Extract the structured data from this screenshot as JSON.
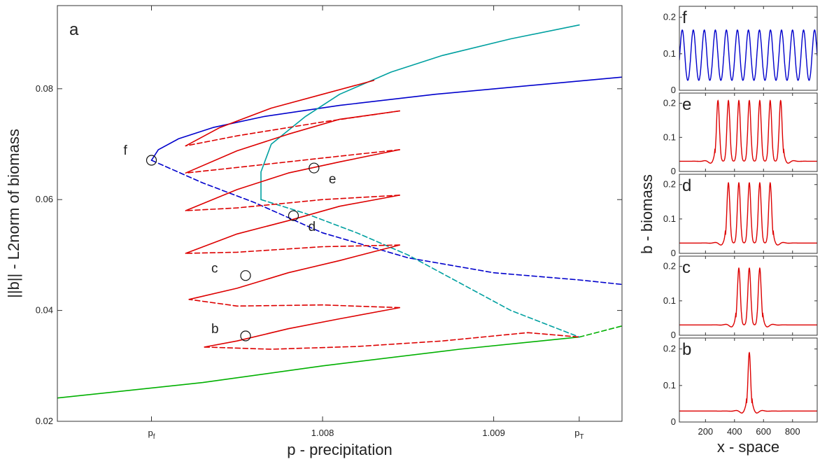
{
  "chart_data": [
    {
      "type": "line",
      "panel_label": "a",
      "xlabel": "p - precipitation",
      "ylabel": "||b|| - L2norm of biomass",
      "xlim": [
        1.00645,
        1.00975
      ],
      "ylim": [
        0.02,
        0.095
      ],
      "x_ticks": [
        {
          "value": 1.007,
          "label": "p",
          "sub": "f"
        },
        {
          "value": 1.008,
          "label": "1.008",
          "sub": ""
        },
        {
          "value": 1.009,
          "label": "1.009",
          "sub": ""
        },
        {
          "value": 1.0095,
          "label": "p",
          "sub": "T"
        }
      ],
      "y_ticks": [
        {
          "value": 0.02,
          "label": "0.02"
        },
        {
          "value": 0.04,
          "label": "0.04"
        },
        {
          "value": 0.06,
          "label": "0.06"
        },
        {
          "value": 0.08,
          "label": "0.08"
        }
      ],
      "series": [
        {
          "color": "#00b000",
          "style": "solid",
          "points": [
            [
              1.00645,
              0.0242
            ],
            [
              1.0073,
              0.027
            ],
            [
              1.008,
              0.03
            ],
            [
              1.0088,
              0.033
            ],
            [
              1.0095,
              0.0352
            ]
          ]
        },
        {
          "color": "#00b000",
          "style": "dashed",
          "points": [
            [
              1.0095,
              0.0352
            ],
            [
              1.00975,
              0.0372
            ]
          ]
        },
        {
          "color": "#0000cc",
          "style": "solid",
          "points": [
            [
              1.007,
              0.0671
            ],
            [
              1.00704,
              0.069
            ],
            [
              1.00716,
              0.071
            ],
            [
              1.00736,
              0.073
            ],
            [
              1.00766,
              0.075
            ],
            [
              1.0081,
              0.077
            ],
            [
              1.00866,
              0.079
            ],
            [
              1.00936,
              0.081
            ],
            [
              1.00975,
              0.0821
            ]
          ]
        },
        {
          "color": "#0000cc",
          "style": "dashed",
          "points": [
            [
              1.007,
              0.0671
            ],
            [
              1.0073,
              0.063
            ],
            [
              1.0076,
              0.0595
            ],
            [
              1.008,
              0.054
            ],
            [
              1.0085,
              0.0495
            ],
            [
              1.009,
              0.0468
            ],
            [
              1.0095,
              0.0455
            ],
            [
              1.00975,
              0.0447
            ]
          ]
        },
        {
          "color": "#00a0a0",
          "style": "solid",
          "points": [
            [
              1.00764,
              0.06
            ],
            [
              1.00764,
              0.065
            ],
            [
              1.0077,
              0.07
            ],
            [
              1.0079,
              0.075
            ],
            [
              1.0081,
              0.079
            ],
            [
              1.0084,
              0.083
            ],
            [
              1.0087,
              0.086
            ],
            [
              1.0091,
              0.089
            ],
            [
              1.0095,
              0.0915
            ]
          ]
        },
        {
          "color": "#00a0a0",
          "style": "dashed",
          "points": [
            [
              1.00764,
              0.06
            ],
            [
              1.0079,
              0.0575
            ],
            [
              1.0082,
              0.054
            ],
            [
              1.0085,
              0.05
            ],
            [
              1.0088,
              0.045
            ],
            [
              1.0091,
              0.04
            ],
            [
              1.0095,
              0.0352
            ]
          ]
        },
        {
          "color": "#dd0000",
          "style": "solid",
          "points": [
            [
              1.00731,
              0.0334
            ],
            [
              1.0075,
              0.0345
            ],
            [
              1.0078,
              0.0367
            ],
            [
              1.0081,
              0.0385
            ],
            [
              1.00845,
              0.0405
            ]
          ]
        },
        {
          "color": "#dd0000",
          "style": "dashed",
          "points": [
            [
              1.00731,
              0.0334
            ],
            [
              1.0077,
              0.033
            ],
            [
              1.0082,
              0.0335
            ],
            [
              1.0087,
              0.0345
            ],
            [
              1.0092,
              0.036
            ],
            [
              1.0095,
              0.0352
            ]
          ]
        },
        {
          "color": "#dd0000",
          "style": "dashed",
          "points": [
            [
              1.00845,
              0.0405
            ],
            [
              1.008,
              0.041
            ],
            [
              1.0075,
              0.0408
            ],
            [
              1.00722,
              0.042
            ]
          ]
        },
        {
          "color": "#dd0000",
          "style": "solid",
          "points": [
            [
              1.00722,
              0.042
            ],
            [
              1.0075,
              0.044
            ],
            [
              1.0078,
              0.0468
            ],
            [
              1.0081,
              0.049
            ],
            [
              1.00845,
              0.0518
            ]
          ]
        },
        {
          "color": "#dd0000",
          "style": "dashed",
          "points": [
            [
              1.00845,
              0.0518
            ],
            [
              1.008,
              0.0515
            ],
            [
              1.0075,
              0.0505
            ],
            [
              1.0072,
              0.0503
            ]
          ]
        },
        {
          "color": "#dd0000",
          "style": "solid",
          "points": [
            [
              1.0072,
              0.0503
            ],
            [
              1.0075,
              0.0538
            ],
            [
              1.0078,
              0.0562
            ],
            [
              1.0081,
              0.0588
            ],
            [
              1.00845,
              0.0608
            ]
          ]
        },
        {
          "color": "#dd0000",
          "style": "dashed",
          "points": [
            [
              1.00845,
              0.0608
            ],
            [
              1.008,
              0.06
            ],
            [
              1.0075,
              0.0585
            ],
            [
              1.0072,
              0.058
            ]
          ]
        },
        {
          "color": "#dd0000",
          "style": "solid",
          "points": [
            [
              1.0072,
              0.058
            ],
            [
              1.0075,
              0.0618
            ],
            [
              1.0078,
              0.0648
            ],
            [
              1.0081,
              0.0668
            ],
            [
              1.00845,
              0.069
            ]
          ]
        },
        {
          "color": "#dd0000",
          "style": "dashed",
          "points": [
            [
              1.00845,
              0.069
            ],
            [
              1.008,
              0.0675
            ],
            [
              1.0075,
              0.0658
            ],
            [
              1.0072,
              0.0648
            ]
          ]
        },
        {
          "color": "#dd0000",
          "style": "solid",
          "points": [
            [
              1.0072,
              0.0648
            ],
            [
              1.0075,
              0.0688
            ],
            [
              1.0078,
              0.0718
            ],
            [
              1.0081,
              0.0745
            ],
            [
              1.00845,
              0.076
            ]
          ]
        },
        {
          "color": "#dd0000",
          "style": "dashed",
          "points": [
            [
              1.00845,
              0.076
            ],
            [
              1.008,
              0.074
            ],
            [
              1.0075,
              0.0715
            ],
            [
              1.0072,
              0.0697
            ]
          ]
        },
        {
          "color": "#dd0000",
          "style": "solid",
          "points": [
            [
              1.0072,
              0.0697
            ],
            [
              1.0074,
              0.073
            ],
            [
              1.0077,
              0.0765
            ],
            [
              1.008,
              0.079
            ],
            [
              1.0083,
              0.0815
            ]
          ]
        }
      ],
      "markers": [
        {
          "label": "f",
          "x": 1.007,
          "y": 0.0671
        },
        {
          "label": "e",
          "x": 1.00795,
          "y": 0.0657
        },
        {
          "label": "d",
          "x": 1.00783,
          "y": 0.0571
        },
        {
          "label": "c",
          "x": 1.00755,
          "y": 0.0463
        },
        {
          "label": "b",
          "x": 1.00755,
          "y": 0.0354
        }
      ]
    },
    {
      "type": "line",
      "layout": "stacked-panels",
      "xlabel": "x - space",
      "ylabel": "b - biomass",
      "xlim": [
        20,
        970
      ],
      "x_ticks": [
        {
          "value": 200,
          "label": "200"
        },
        {
          "value": 400,
          "label": "400"
        },
        {
          "value": 600,
          "label": "600"
        },
        {
          "value": 800,
          "label": "800"
        }
      ],
      "panels": [
        {
          "letter": "f",
          "color": "#0000cc",
          "ylim": [
            0,
            0.23
          ],
          "y_ticks": [
            {
              "value": 0,
              "label": "0"
            },
            {
              "value": 0.1,
              "label": "0.1"
            },
            {
              "value": 0.2,
              "label": "0.2"
            }
          ],
          "baseline": 0.0,
          "peak": 0.165,
          "peak_width": 17,
          "ripple": 0,
          "peaks": [
            40,
            116,
            192,
            268,
            344,
            420,
            496,
            572,
            648,
            724,
            800,
            876,
            952
          ]
        },
        {
          "letter": "e",
          "color": "#dd0000",
          "ylim": [
            0,
            0.23
          ],
          "y_ticks": [
            {
              "value": 0,
              "label": "0"
            },
            {
              "value": 0.1,
              "label": "0.1"
            },
            {
              "value": 0.2,
              "label": "0.2"
            }
          ],
          "baseline": 0.03,
          "peak": 0.208,
          "peak_width": 10,
          "ripple": 0.018,
          "peaks": [
            286,
            358,
            430,
            502,
            574,
            646,
            718
          ]
        },
        {
          "letter": "d",
          "color": "#dd0000",
          "ylim": [
            0,
            0.23
          ],
          "y_ticks": [
            {
              "value": 0,
              "label": "0"
            },
            {
              "value": 0.1,
              "label": "0.1"
            },
            {
              "value": 0.2,
              "label": "0.2"
            }
          ],
          "baseline": 0.03,
          "peak": 0.205,
          "peak_width": 10,
          "ripple": 0.018,
          "peaks": [
            358,
            430,
            502,
            574,
            646
          ]
        },
        {
          "letter": "c",
          "color": "#dd0000",
          "ylim": [
            0,
            0.23
          ],
          "y_ticks": [
            {
              "value": 0,
              "label": "0"
            },
            {
              "value": 0.1,
              "label": "0.1"
            },
            {
              "value": 0.2,
              "label": "0.2"
            }
          ],
          "baseline": 0.03,
          "peak": 0.195,
          "peak_width": 10,
          "ripple": 0.018,
          "peaks": [
            430,
            502,
            574
          ]
        },
        {
          "letter": "b",
          "color": "#dd0000",
          "ylim": [
            0,
            0.23
          ],
          "y_ticks": [
            {
              "value": 0,
              "label": "0"
            },
            {
              "value": 0.1,
              "label": "0.1"
            },
            {
              "value": 0.2,
              "label": "0.2"
            }
          ],
          "baseline": 0.03,
          "peak": 0.19,
          "peak_width": 9,
          "ripple": 0.018,
          "peaks": [
            502
          ]
        }
      ]
    }
  ]
}
